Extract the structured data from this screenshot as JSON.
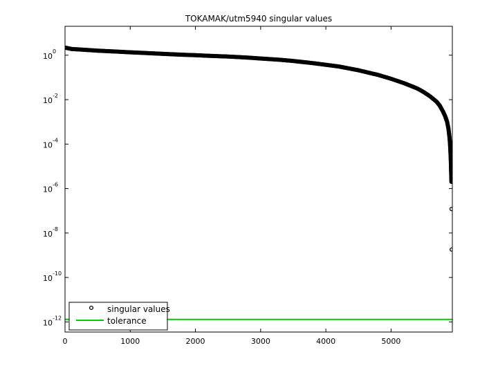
{
  "chart_data": {
    "type": "scatter",
    "title": "TOKAMAK/utm5940 singular values",
    "xlabel": "",
    "ylabel": "",
    "xlim": [
      0,
      5940
    ],
    "ylim": [
      3.5e-13,
      20
    ],
    "yscale": "log",
    "x_ticks": [
      {
        "value": 0,
        "label": "0"
      },
      {
        "value": 1000,
        "label": "1000"
      },
      {
        "value": 2000,
        "label": "2000"
      },
      {
        "value": 3000,
        "label": "3000"
      },
      {
        "value": 4000,
        "label": "4000"
      },
      {
        "value": 5000,
        "label": "5000"
      }
    ],
    "y_ticks": [
      {
        "value": 1,
        "base": "10",
        "exp": "0"
      },
      {
        "value": 0.01,
        "base": "10",
        "exp": "-2"
      },
      {
        "value": 0.0001,
        "base": "10",
        "exp": "-4"
      },
      {
        "value": 1e-06,
        "base": "10",
        "exp": "-6"
      },
      {
        "value": 1e-08,
        "base": "10",
        "exp": "-8"
      },
      {
        "value": 1e-10,
        "base": "10",
        "exp": "-10"
      },
      {
        "value": 1e-12,
        "base": "10",
        "exp": "-12"
      }
    ],
    "series": [
      {
        "name": "singular values",
        "marker": "circle",
        "color": "#000000",
        "points": [
          [
            1,
            2.2
          ],
          [
            100,
            1.9
          ],
          [
            300,
            1.75
          ],
          [
            500,
            1.6
          ],
          [
            800,
            1.45
          ],
          [
            1000,
            1.35
          ],
          [
            1200,
            1.27
          ],
          [
            1500,
            1.15
          ],
          [
            1800,
            1.05
          ],
          [
            2000,
            1.0
          ],
          [
            2200,
            0.94
          ],
          [
            2500,
            0.87
          ],
          [
            2800,
            0.78
          ],
          [
            3000,
            0.71
          ],
          [
            3300,
            0.62
          ],
          [
            3500,
            0.55
          ],
          [
            3800,
            0.44
          ],
          [
            4000,
            0.37
          ],
          [
            4200,
            0.31
          ],
          [
            4500,
            0.21
          ],
          [
            4800,
            0.13
          ],
          [
            5000,
            0.087
          ],
          [
            5200,
            0.055
          ],
          [
            5400,
            0.032
          ],
          [
            5500,
            0.022
          ],
          [
            5600,
            0.014
          ],
          [
            5700,
            0.008
          ],
          [
            5750,
            0.0052
          ],
          [
            5800,
            0.0028
          ],
          [
            5830,
            0.0018
          ],
          [
            5860,
            0.001
          ],
          [
            5880,
            0.0005
          ],
          [
            5895,
            0.00022
          ],
          [
            5905,
            0.0001
          ],
          [
            5910,
            5e-05
          ],
          [
            5915,
            2.5e-05
          ],
          [
            5918,
            1.4e-05
          ],
          [
            5920,
            8.5e-06
          ],
          [
            5922,
            5.5e-06
          ],
          [
            5924,
            3.5e-06
          ],
          [
            5926,
            2e-06
          ],
          [
            5928,
            1.2e-07
          ],
          [
            5930,
            1.8e-09
          ]
        ]
      },
      {
        "name": "tolerance",
        "type": "line",
        "color": "#00cc00",
        "value": 1.3e-12
      }
    ],
    "grid": false,
    "legend": {
      "placement": "bottom-left",
      "entries": [
        "singular values",
        "tolerance"
      ]
    }
  }
}
